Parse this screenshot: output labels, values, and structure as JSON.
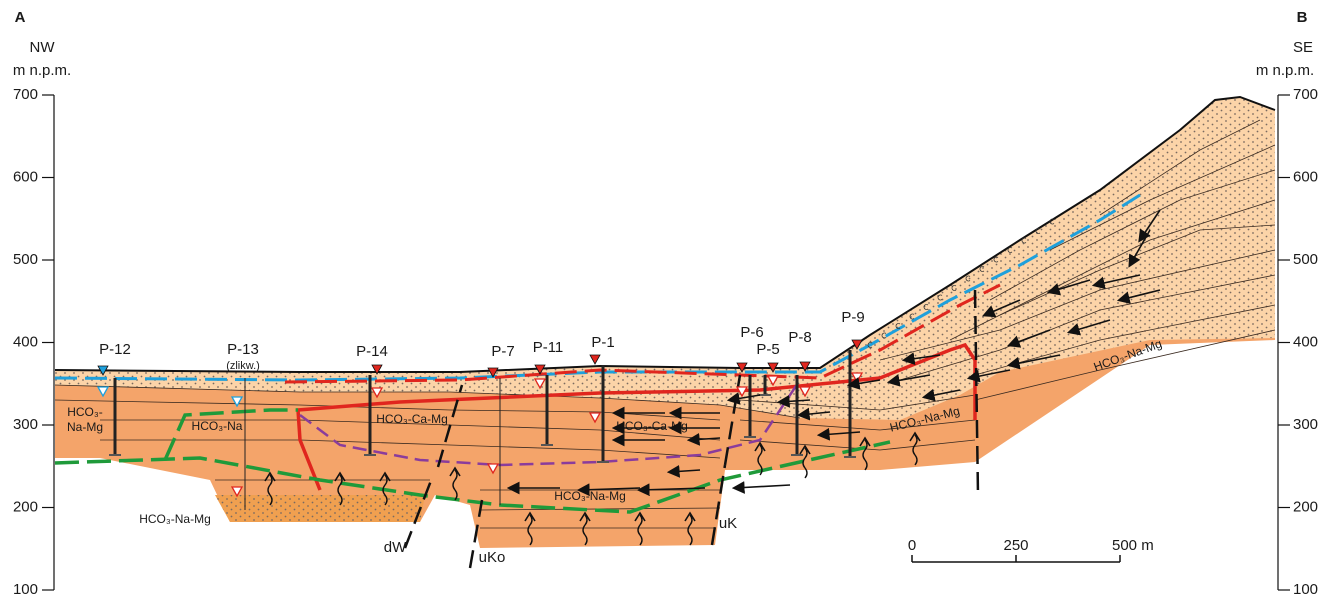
{
  "corners": {
    "left": {
      "letter": "A",
      "direction": "NW",
      "unit": "m n.p.m."
    },
    "right": {
      "letter": "B",
      "direction": "SE",
      "unit": "m n.p.m."
    }
  },
  "axis": {
    "ticks": [
      "700",
      "600",
      "500",
      "400",
      "300",
      "200",
      "100"
    ]
  },
  "wells": [
    {
      "label": "P-12"
    },
    {
      "label": "P-13",
      "note": "(zlikw.)"
    },
    {
      "label": "P-14"
    },
    {
      "label": "P-7"
    },
    {
      "label": "P-11"
    },
    {
      "label": "P-1"
    },
    {
      "label": "P-6"
    },
    {
      "label": "P-5"
    },
    {
      "label": "P-8"
    },
    {
      "label": "P-9"
    }
  ],
  "water_types": [
    {
      "lines": [
        "HCO₃-",
        "Na-Mg"
      ]
    },
    {
      "lines": [
        "HCO₃-Na"
      ]
    },
    {
      "lines": [
        "HCO₃-Na-Mg"
      ]
    },
    {
      "lines": [
        "HCO₃-Ca-Mg"
      ]
    },
    {
      "lines": [
        "HCO₃-Ca-Mg"
      ]
    },
    {
      "lines": [
        "HCO₃-Na-Mg"
      ]
    },
    {
      "lines": [
        "HCO₃-Na-Mg"
      ]
    },
    {
      "lines": [
        "HCO₃-Na-Mg"
      ]
    }
  ],
  "faults": [
    "dW",
    "uKo",
    "uK"
  ],
  "scale_bar": {
    "labels": [
      "0",
      "250",
      "500 m"
    ]
  }
}
